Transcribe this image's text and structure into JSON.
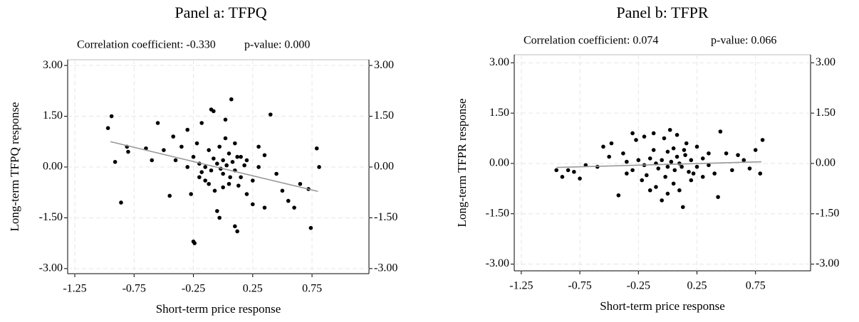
{
  "chart_data": [
    {
      "type": "scatter",
      "title": "Panel a: TFPQ",
      "annotations": [
        "Correlation coefficient: -0.330",
        "p-value: 0.000"
      ],
      "x_label": "Short-term price response",
      "y_label": "Long-term TFPQ response",
      "xlim": [
        -1.31,
        1.23
      ],
      "ylim": [
        -3.15,
        3.17
      ],
      "xticks": [
        -1.25,
        -0.75,
        -0.25,
        0.25,
        0.75
      ],
      "yticks": [
        {
          "value": 3,
          "label": "3.00"
        },
        {
          "value": 1.5,
          "label": "1.50"
        },
        {
          "value": 0,
          "label": "0.00"
        },
        {
          "value": -1.5,
          "label": "-1.50"
        },
        {
          "value": -3,
          "label": "-3.00"
        }
      ],
      "grid": true,
      "color": "#000000",
      "x": [
        -0.97,
        -0.94,
        -0.91,
        -0.86,
        -0.81,
        -0.8,
        -0.65,
        -0.6,
        -0.55,
        -0.5,
        -0.45,
        -0.42,
        -0.35,
        -0.3,
        -0.27,
        -0.25,
        -0.24,
        -0.2,
        -0.18,
        -0.15,
        -0.12,
        -0.1,
        -0.08,
        -0.05,
        -0.03,
        0.0,
        0.02,
        0.05,
        0.07,
        0.1,
        0.12,
        0.15,
        0.2,
        0.25,
        0.3,
        0.35,
        0.4,
        0.45,
        0.5,
        0.55,
        0.6,
        0.65,
        0.72,
        0.74,
        0.79,
        0.81,
        -0.1,
        -0.05,
        0.0,
        0.03,
        0.06,
        -0.02,
        0.08,
        -0.08,
        0.1,
        -0.15,
        0.12,
        0.15,
        -0.2,
        0.18,
        -0.12,
        0.05,
        -0.03,
        0.2,
        -0.25,
        0.25,
        0.0,
        -0.07,
        0.1,
        -0.3,
        0.3,
        -0.18,
        0.13,
        -0.4,
        0.35,
        0.02,
        -0.22
      ],
      "values": [
        1.15,
        1.5,
        0.15,
        -1.05,
        0.6,
        0.45,
        0.55,
        0.2,
        1.3,
        0.5,
        -0.85,
        0.9,
        0.6,
        1.1,
        -0.8,
        -2.2,
        -2.25,
        0.1,
        1.3,
        -0.4,
        0.5,
        1.7,
        1.65,
        -1.3,
        -1.5,
        0.2,
        1.4,
        -0.5,
        2.0,
        -1.75,
        -1.9,
        0.3,
        -0.8,
        -1.1,
        0.6,
        -1.2,
        1.55,
        -0.2,
        -0.7,
        -1.0,
        -1.2,
        -0.5,
        -0.65,
        -1.8,
        0.55,
        0.0,
        -0.1,
        0.1,
        -0.2,
        0.05,
        -0.3,
        -0.05,
        0.15,
        0.25,
        -0.1,
        0.0,
        0.3,
        -0.3,
        -0.3,
        0.05,
        -0.5,
        0.4,
        0.6,
        0.2,
        0.3,
        -0.4,
        -0.6,
        -0.7,
        0.7,
        0.0,
        0.0,
        -0.15,
        -0.55,
        0.2,
        0.35,
        0.85,
        0.7
      ],
      "fit": {
        "x": [
          -0.95,
          0.8
        ],
        "values": [
          0.75,
          -0.72
        ],
        "color": "#999999"
      }
    },
    {
      "type": "scatter",
      "title": "Panel b: TFPR",
      "annotations": [
        "Correlation coefficient: 0.074",
        "p-value: 0.066"
      ],
      "x_label": "Short-term price response",
      "y_label": "Long-term TFPR response",
      "xlim": [
        -1.31,
        1.22
      ],
      "ylim": [
        -3.2,
        3.24
      ],
      "xticks": [
        -1.25,
        -0.75,
        -0.25,
        0.25,
        0.75
      ],
      "yticks": [
        {
          "value": 3,
          "label": "3.00"
        },
        {
          "value": 1.5,
          "label": "1.50"
        },
        {
          "value": 0,
          "label": "0.00"
        },
        {
          "value": -1.5,
          "label": "-1.50"
        },
        {
          "value": -3,
          "label": "-3.00"
        }
      ],
      "grid": true,
      "color": "#000000",
      "x": [
        -0.95,
        -0.9,
        -0.85,
        -0.8,
        -0.75,
        -0.7,
        -0.6,
        -0.55,
        -0.5,
        -0.48,
        -0.42,
        -0.38,
        -0.35,
        -0.3,
        -0.27,
        -0.22,
        -0.2,
        -0.15,
        -0.12,
        -0.1,
        -0.05,
        -0.03,
        0.0,
        0.02,
        0.05,
        0.08,
        0.1,
        0.13,
        0.16,
        0.2,
        0.25,
        0.3,
        0.35,
        0.4,
        0.43,
        0.45,
        0.5,
        0.55,
        0.6,
        0.65,
        0.7,
        0.75,
        0.79,
        0.81,
        -0.1,
        -0.05,
        0.0,
        0.03,
        0.06,
        0.08,
        -0.08,
        0.1,
        -0.15,
        0.12,
        0.15,
        -0.2,
        0.18,
        -0.25,
        0.2,
        -0.3,
        0.25,
        0.0,
        -0.02,
        0.05,
        -0.12,
        0.14,
        -0.18,
        0.22,
        0.3,
        -0.35,
        0.35
      ],
      "values": [
        -0.2,
        -0.4,
        -0.2,
        -0.25,
        -0.45,
        -0.05,
        -0.1,
        0.5,
        0.2,
        0.6,
        -0.95,
        0.3,
        -0.3,
        0.9,
        0.7,
        -0.5,
        0.8,
        -0.8,
        0.9,
        -0.7,
        -1.1,
        0.75,
        -0.9,
        1.0,
        -0.6,
        0.85,
        -0.8,
        -1.3,
        0.6,
        -0.5,
        0.5,
        -0.4,
        0.3,
        -0.3,
        -1.0,
        0.95,
        0.3,
        -0.2,
        0.25,
        0.1,
        -0.15,
        0.4,
        -0.3,
        0.7,
        0.0,
        0.1,
        -0.1,
        0.05,
        -0.2,
        0.2,
        -0.15,
        0.0,
        0.15,
        -0.1,
        0.25,
        -0.05,
        -0.25,
        0.1,
        0.1,
        -0.2,
        -0.1,
        0.35,
        -0.4,
        0.45,
        0.4,
        0.4,
        -0.35,
        -0.3,
        0.15,
        0.05,
        -0.05
      ],
      "fit": {
        "x": [
          -0.95,
          0.8
        ],
        "values": [
          -0.12,
          0.05
        ],
        "color": "#999999"
      }
    }
  ]
}
